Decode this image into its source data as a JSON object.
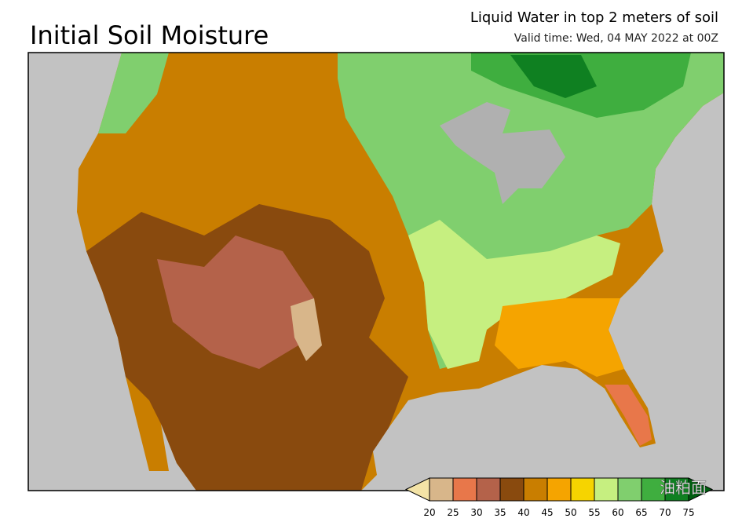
{
  "header": {
    "title": "Initial Soil Moisture",
    "subtitle": "Liquid Water in top 2 meters of soil",
    "valid_time": "Valid time: Wed, 04 MAY 2022 at 00Z"
  },
  "legend": {
    "labels": [
      20,
      25,
      30,
      35,
      40,
      45,
      50,
      55,
      60,
      65,
      70,
      75
    ],
    "colors": [
      "#f3e3a6",
      "#d8b68a",
      "#e8774a",
      "#b4624a",
      "#894a0e",
      "#c97e00",
      "#f5a400",
      "#f6d400",
      "#c6ef80",
      "#80cf6e",
      "#3fae3f",
      "#0f8021",
      "#005f10"
    ]
  },
  "watermark": "油粕面"
}
